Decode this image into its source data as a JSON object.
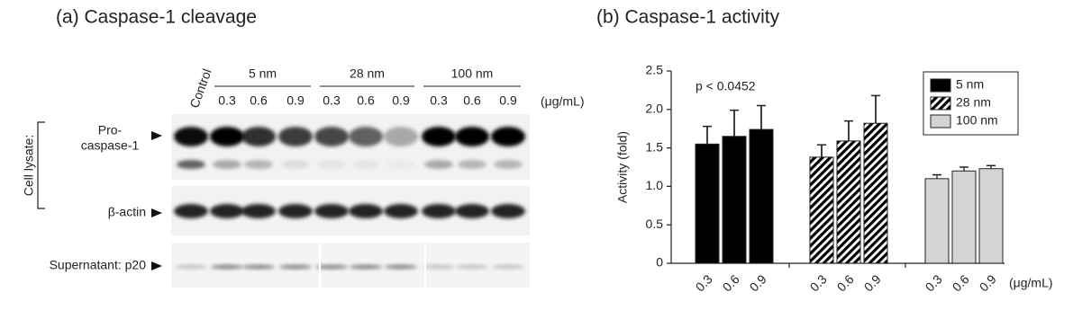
{
  "panel_a": {
    "title": "(a) Caspase-1 cleavage",
    "control_label": "Control",
    "groups": [
      "5 nm",
      "28 nm",
      "100 nm"
    ],
    "concentrations": [
      "0.3",
      "0.6",
      "0.9"
    ],
    "unit": "(μg/mL)",
    "rows": {
      "group_label": "Cell lysate:",
      "pro_caspase": [
        "Pro-",
        "caspase-1"
      ],
      "actin": "β-actin",
      "supernatant": "Supernatant: p20"
    }
  },
  "chart_data": {
    "type": "bar",
    "title": "(b) Caspase-1 activity",
    "y_label": "Activity (fold)",
    "x_unit": "(μg/mL)",
    "annotation": "p < 0.0452",
    "categories": [
      "0.3",
      "0.6",
      "0.9"
    ],
    "series": [
      {
        "name": "5 nm",
        "color": "#000000",
        "values": [
          1.55,
          1.65,
          1.74
        ],
        "errors": [
          0.23,
          0.34,
          0.31
        ]
      },
      {
        "name": "28 nm",
        "color": "#000000",
        "hatch": true,
        "values": [
          1.38,
          1.59,
          1.82
        ],
        "errors": [
          0.16,
          0.26,
          0.36
        ]
      },
      {
        "name": "100 nm",
        "color": "#d4d4d4",
        "values": [
          1.1,
          1.2,
          1.23
        ],
        "errors": [
          0.05,
          0.05,
          0.04
        ]
      }
    ],
    "ylim": [
      0,
      2.5
    ],
    "yticks": [
      0,
      0.5,
      {
        "value": 1,
        "label": "1.0"
      },
      1.5,
      {
        "value": 2,
        "label": "2.0"
      },
      2.5
    ],
    "legend": "upper right"
  }
}
